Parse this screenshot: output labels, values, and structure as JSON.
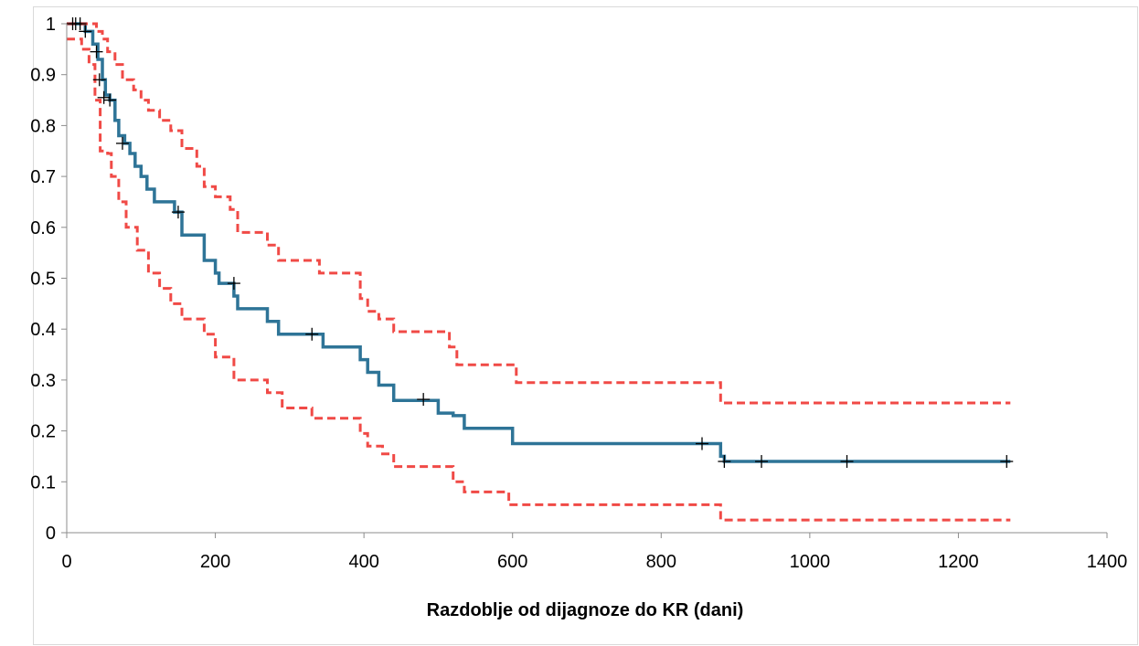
{
  "chart_data": {
    "type": "line",
    "title": "",
    "xlabel": "Razdoblje od dijagnoze do KR (dani)",
    "ylabel": "",
    "xlim": [
      0,
      1400
    ],
    "ylim": [
      0,
      1
    ],
    "x_ticks": [
      0,
      200,
      400,
      600,
      800,
      1000,
      1200,
      1400
    ],
    "y_ticks": [
      0,
      0.1,
      0.2,
      0.3,
      0.4,
      0.5,
      0.6,
      0.7,
      0.8,
      0.9,
      1
    ],
    "x_tick_labels": [
      "0",
      "200",
      "400",
      "600",
      "800",
      "1000",
      "1200",
      "1400"
    ],
    "y_tick_labels": [
      "0",
      "0.1",
      "0.2",
      "0.3",
      "0.4",
      "0.5",
      "0.6",
      "0.7",
      "0.8",
      "0.9",
      "1"
    ],
    "grid": false,
    "legend": "none",
    "series": [
      {
        "role": "survival",
        "style": "solid",
        "color": "#2e7497",
        "steps": [
          [
            0,
            1
          ],
          [
            25,
            0.985
          ],
          [
            35,
            0.96
          ],
          [
            42,
            0.93
          ],
          [
            48,
            0.89
          ],
          [
            52,
            0.86
          ],
          [
            58,
            0.85
          ],
          [
            65,
            0.81
          ],
          [
            70,
            0.78
          ],
          [
            78,
            0.765
          ],
          [
            85,
            0.745
          ],
          [
            92,
            0.72
          ],
          [
            100,
            0.7
          ],
          [
            108,
            0.675
          ],
          [
            118,
            0.65
          ],
          [
            145,
            0.63
          ],
          [
            155,
            0.585
          ],
          [
            185,
            0.535
          ],
          [
            200,
            0.51
          ],
          [
            205,
            0.49
          ],
          [
            225,
            0.465
          ],
          [
            230,
            0.44
          ],
          [
            270,
            0.415
          ],
          [
            285,
            0.39
          ],
          [
            345,
            0.365
          ],
          [
            395,
            0.34
          ],
          [
            405,
            0.315
          ],
          [
            420,
            0.29
          ],
          [
            440,
            0.26
          ],
          [
            500,
            0.235
          ],
          [
            520,
            0.23
          ],
          [
            535,
            0.205
          ],
          [
            600,
            0.175
          ],
          [
            880,
            0.15
          ],
          [
            885,
            0.14
          ],
          [
            1270,
            0.14
          ]
        ]
      },
      {
        "role": "upper-ci",
        "style": "dashed",
        "color": "#f04a46",
        "steps": [
          [
            0,
            1
          ],
          [
            40,
            0.985
          ],
          [
            48,
            0.97
          ],
          [
            55,
            0.945
          ],
          [
            65,
            0.92
          ],
          [
            75,
            0.89
          ],
          [
            90,
            0.87
          ],
          [
            100,
            0.85
          ],
          [
            110,
            0.83
          ],
          [
            125,
            0.81
          ],
          [
            140,
            0.79
          ],
          [
            155,
            0.755
          ],
          [
            175,
            0.72
          ],
          [
            185,
            0.68
          ],
          [
            200,
            0.66
          ],
          [
            220,
            0.635
          ],
          [
            230,
            0.59
          ],
          [
            270,
            0.565
          ],
          [
            285,
            0.535
          ],
          [
            340,
            0.51
          ],
          [
            395,
            0.46
          ],
          [
            405,
            0.435
          ],
          [
            420,
            0.42
          ],
          [
            440,
            0.395
          ],
          [
            515,
            0.365
          ],
          [
            525,
            0.33
          ],
          [
            605,
            0.295
          ],
          [
            880,
            0.255
          ],
          [
            1270,
            0.255
          ]
        ]
      },
      {
        "role": "lower-ci",
        "style": "dashed",
        "color": "#f04a46",
        "steps": [
          [
            0,
            0.97
          ],
          [
            20,
            0.95
          ],
          [
            30,
            0.92
          ],
          [
            38,
            0.85
          ],
          [
            45,
            0.75
          ],
          [
            55,
            0.745
          ],
          [
            60,
            0.7
          ],
          [
            70,
            0.65
          ],
          [
            80,
            0.6
          ],
          [
            95,
            0.555
          ],
          [
            110,
            0.51
          ],
          [
            125,
            0.48
          ],
          [
            140,
            0.45
          ],
          [
            155,
            0.42
          ],
          [
            185,
            0.39
          ],
          [
            200,
            0.345
          ],
          [
            225,
            0.3
          ],
          [
            270,
            0.275
          ],
          [
            290,
            0.245
          ],
          [
            330,
            0.225
          ],
          [
            395,
            0.195
          ],
          [
            405,
            0.17
          ],
          [
            425,
            0.155
          ],
          [
            440,
            0.13
          ],
          [
            520,
            0.1
          ],
          [
            535,
            0.08
          ],
          [
            595,
            0.055
          ],
          [
            880,
            0.025
          ],
          [
            1270,
            0.025
          ]
        ]
      }
    ],
    "censored_points": [
      [
        8,
        1
      ],
      [
        12,
        1
      ],
      [
        18,
        1
      ],
      [
        25,
        0.985
      ],
      [
        40,
        0.945
      ],
      [
        44,
        0.89
      ],
      [
        50,
        0.855
      ],
      [
        58,
        0.85
      ],
      [
        75,
        0.765
      ],
      [
        150,
        0.63
      ],
      [
        225,
        0.49
      ],
      [
        330,
        0.39
      ],
      [
        480,
        0.262
      ],
      [
        855,
        0.175
      ],
      [
        885,
        0.14
      ],
      [
        935,
        0.14
      ],
      [
        1050,
        0.14
      ],
      [
        1265,
        0.14
      ]
    ]
  }
}
